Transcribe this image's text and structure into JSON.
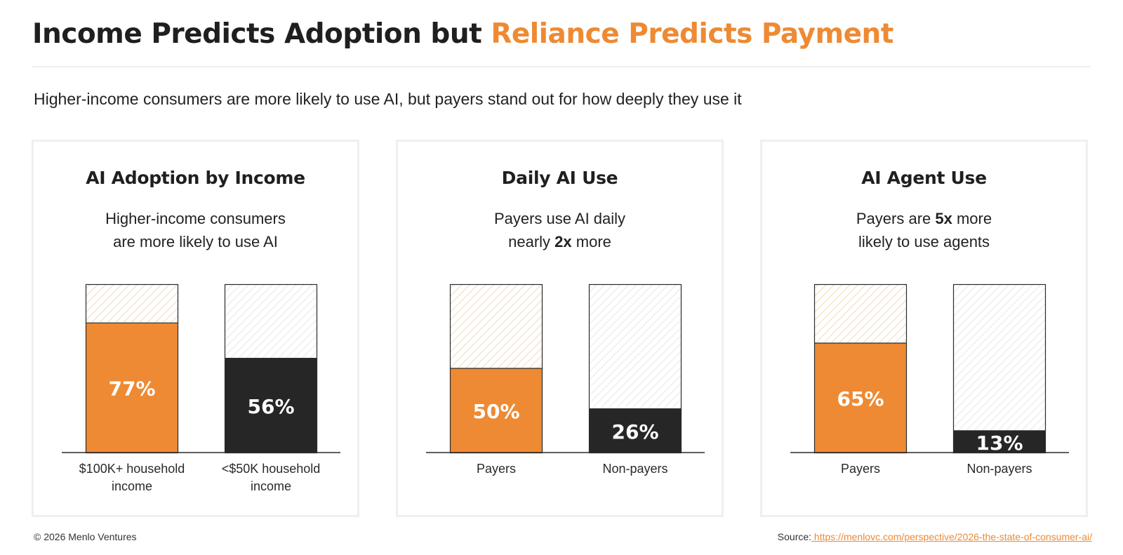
{
  "header": {
    "title_main": "Income Predicts Adoption but",
    "title_accent": "Reliance Predicts Payment",
    "subtitle": "Higher-income consumers are more likely to use AI, but payers stand out for how deeply they use it"
  },
  "colors": {
    "accent": "#ee8a33",
    "dark": "#262626",
    "accent_hatch": "#f3d9b8",
    "gray_hatch": "#e6e6e6"
  },
  "panels": [
    {
      "title": "AI Adoption by Income",
      "subtitle_line1": "Higher-income consumers",
      "subtitle_line2": "are more likely to use AI"
    },
    {
      "title": "Daily AI Use",
      "subtitle_line1": "Payers use AI daily",
      "subtitle_line2_pre": "nearly ",
      "subtitle_line2_bold": "2x",
      "subtitle_line2_post": " more"
    },
    {
      "title": "AI Agent Use",
      "subtitle_line1_pre": "Payers are ",
      "subtitle_line1_bold": "5x",
      "subtitle_line1_post": " more",
      "subtitle_line2": "likely to use agents"
    }
  ],
  "chart_data": [
    {
      "type": "bar",
      "title": "AI Adoption by Income",
      "categories": [
        "$100K+ household income",
        "<$50K household income"
      ],
      "category_lines": [
        [
          "$100K+ household",
          "income"
        ],
        [
          "<$50K household",
          "income"
        ]
      ],
      "values": [
        77,
        56
      ],
      "labels": [
        "77%",
        "56%"
      ],
      "colors": [
        "#ee8a33",
        "#262626"
      ],
      "ylim": [
        0,
        100
      ]
    },
    {
      "type": "bar",
      "title": "Daily AI Use",
      "categories": [
        "Payers",
        "Non-payers"
      ],
      "category_lines": [
        [
          "Payers"
        ],
        [
          "Non-payers"
        ]
      ],
      "values": [
        50,
        26
      ],
      "labels": [
        "50%",
        "26%"
      ],
      "colors": [
        "#ee8a33",
        "#262626"
      ],
      "ylim": [
        0,
        100
      ]
    },
    {
      "type": "bar",
      "title": "AI Agent Use",
      "categories": [
        "Payers",
        "Non-payers"
      ],
      "category_lines": [
        [
          "Payers"
        ],
        [
          "Non-payers"
        ]
      ],
      "values": [
        65,
        13
      ],
      "labels": [
        "65%",
        "13%"
      ],
      "colors": [
        "#ee8a33",
        "#262626"
      ],
      "ylim": [
        0,
        100
      ]
    }
  ],
  "footer": {
    "copyright": "© 2026 Menlo Ventures",
    "source_label": "Source:",
    "source_url": " https://menlovc.com/perspective/2026-the-state-of-consumer-ai/"
  }
}
